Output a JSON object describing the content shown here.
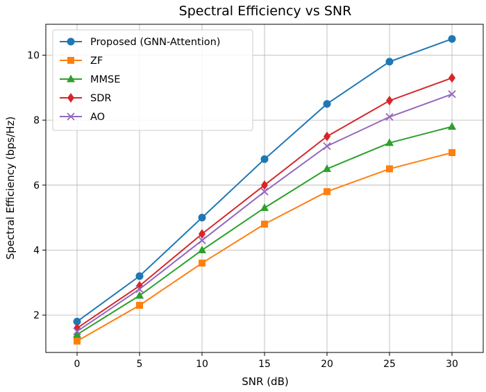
{
  "chart_data": {
    "type": "line",
    "title": "Spectral Efficiency vs SNR",
    "xlabel": "SNR (dB)",
    "ylabel": "Spectral Efficiency (bps/Hz)",
    "x": [
      0,
      5,
      10,
      15,
      20,
      25,
      30
    ],
    "xlim": [
      -2.5,
      32.5
    ],
    "ylim": [
      0.85,
      10.95
    ],
    "xticks": [
      0,
      5,
      10,
      15,
      20,
      25,
      30
    ],
    "yticks": [
      2,
      4,
      6,
      8,
      10
    ],
    "grid": true,
    "legend": "top-left",
    "series": [
      {
        "name": "Proposed (GNN-Attention)",
        "color": "#1f77b4",
        "marker": "circle",
        "values": [
          1.8,
          3.2,
          5.0,
          6.8,
          8.5,
          9.8,
          10.5
        ]
      },
      {
        "name": "ZF",
        "color": "#ff7f0e",
        "marker": "square",
        "values": [
          1.2,
          2.3,
          3.6,
          4.8,
          5.8,
          6.5,
          7.0
        ]
      },
      {
        "name": "MMSE",
        "color": "#2ca02c",
        "marker": "triangle",
        "values": [
          1.4,
          2.6,
          4.0,
          5.3,
          6.5,
          7.3,
          7.8
        ]
      },
      {
        "name": "SDR",
        "color": "#d62728",
        "marker": "diamond",
        "values": [
          1.6,
          2.9,
          4.5,
          6.0,
          7.5,
          8.6,
          9.3
        ]
      },
      {
        "name": "AO",
        "color": "#9467bd",
        "marker": "x",
        "values": [
          1.5,
          2.8,
          4.3,
          5.8,
          7.2,
          8.1,
          8.8
        ]
      }
    ]
  }
}
